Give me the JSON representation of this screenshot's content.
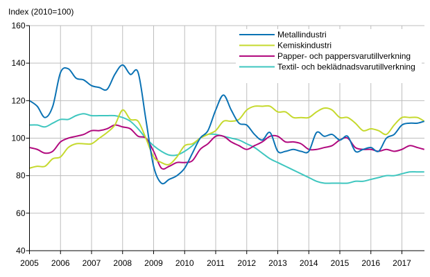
{
  "chart_data": {
    "type": "line",
    "title": "",
    "ylabel": "Index (2010=100)",
    "xlabel": "",
    "ylim": [
      40,
      160
    ],
    "yticks": [
      40,
      60,
      80,
      100,
      120,
      140,
      160
    ],
    "xlim": [
      2005,
      2017.72
    ],
    "xticks": [
      "2005",
      "2006",
      "2007",
      "2008",
      "2009",
      "2010",
      "2011",
      "2012",
      "2013",
      "2014",
      "2015",
      "2016",
      "2017"
    ],
    "grid": true,
    "legend_position": "top-right",
    "x": [
      2005,
      2005.25,
      2005.5,
      2005.75,
      2006,
      2006.25,
      2006.5,
      2006.75,
      2007,
      2007.25,
      2007.5,
      2007.75,
      2008,
      2008.25,
      2008.5,
      2008.75,
      2009,
      2009.25,
      2009.5,
      2009.75,
      2010,
      2010.25,
      2010.5,
      2010.75,
      2011,
      2011.25,
      2011.5,
      2011.75,
      2012,
      2012.25,
      2012.5,
      2012.75,
      2013,
      2013.25,
      2013.5,
      2013.75,
      2014,
      2014.25,
      2014.5,
      2014.75,
      2015,
      2015.25,
      2015.5,
      2015.75,
      2016,
      2016.25,
      2016.5,
      2016.75,
      2017,
      2017.25,
      2017.5,
      2017.72
    ],
    "series": [
      {
        "name": "Metallindustri",
        "color": "#0a72b4",
        "values": [
          120,
          117,
          111,
          117,
          135,
          137,
          132,
          131,
          128,
          127,
          126,
          134,
          139,
          134,
          135,
          110,
          85,
          76,
          78,
          80,
          84,
          92,
          100,
          104,
          115,
          123,
          115,
          108,
          107,
          102,
          99,
          103,
          93,
          93,
          94,
          93,
          93,
          103,
          101,
          102,
          99,
          101,
          93,
          94,
          95,
          93,
          100,
          102,
          107,
          108,
          108,
          109
        ]
      },
      {
        "name": "Kemiskindustri",
        "color": "#c5d92d",
        "values": [
          84,
          85,
          85,
          89,
          90,
          95,
          97,
          97,
          97,
          100,
          103,
          107,
          115,
          110,
          109,
          100,
          90,
          87,
          86,
          90,
          96,
          97,
          100,
          102,
          104,
          109,
          109,
          110,
          115,
          117,
          117,
          117,
          114,
          114,
          111,
          111,
          111,
          114,
          116,
          115,
          111,
          111,
          108,
          104,
          105,
          104,
          102,
          107,
          111,
          111,
          111,
          109
        ]
      },
      {
        "name": "Papper- och pappersvarutillverkning",
        "color": "#b1097e",
        "values": [
          95,
          94,
          92,
          93,
          98,
          100,
          101,
          102,
          104,
          104,
          105,
          107,
          106,
          105,
          101,
          100,
          93,
          84,
          85,
          87,
          87,
          88,
          94,
          97,
          101,
          101,
          98,
          96,
          94,
          96,
          98,
          101,
          101,
          98,
          98,
          97,
          94,
          94,
          95,
          96,
          99,
          100,
          95,
          94,
          94,
          93,
          94,
          93,
          94,
          96,
          95,
          94
        ]
      },
      {
        "name": "Textil- och beklädnadsvarutillverkning",
        "color": "#3ec6bf",
        "values": [
          107,
          107,
          106,
          108,
          110,
          110,
          112,
          113,
          112,
          112,
          112,
          112,
          111,
          109,
          105,
          100,
          96,
          93,
          91,
          91,
          93,
          96,
          100,
          102,
          102,
          101,
          100,
          99,
          97,
          95,
          92,
          89,
          87,
          85,
          83,
          81,
          79,
          77,
          76,
          76,
          76,
          76,
          77,
          77,
          78,
          79,
          80,
          80,
          81,
          82,
          82,
          82
        ]
      }
    ]
  }
}
